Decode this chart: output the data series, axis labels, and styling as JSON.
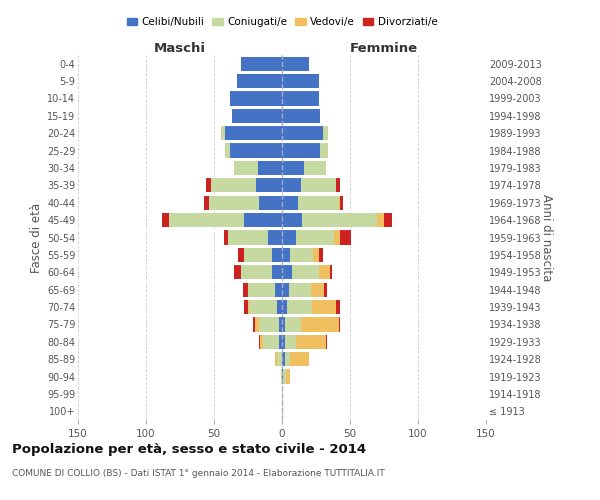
{
  "age_groups": [
    "100+",
    "95-99",
    "90-94",
    "85-89",
    "80-84",
    "75-79",
    "70-74",
    "65-69",
    "60-64",
    "55-59",
    "50-54",
    "45-49",
    "40-44",
    "35-39",
    "30-34",
    "25-29",
    "20-24",
    "15-19",
    "10-14",
    "5-9",
    "0-4"
  ],
  "birth_years": [
    "≤ 1913",
    "1914-1918",
    "1919-1923",
    "1924-1928",
    "1929-1933",
    "1934-1938",
    "1939-1943",
    "1944-1948",
    "1949-1953",
    "1954-1958",
    "1959-1963",
    "1964-1968",
    "1969-1973",
    "1974-1978",
    "1979-1983",
    "1984-1988",
    "1989-1993",
    "1994-1998",
    "1999-2003",
    "2004-2008",
    "2009-2013"
  ],
  "males": {
    "celibi": [
      0,
      0,
      0,
      0,
      2,
      2,
      4,
      5,
      7,
      7,
      10,
      28,
      17,
      19,
      18,
      38,
      42,
      37,
      38,
      33,
      30
    ],
    "coniugati": [
      0,
      0,
      1,
      4,
      12,
      15,
      20,
      20,
      23,
      21,
      30,
      55,
      37,
      33,
      17,
      4,
      3,
      0,
      0,
      0,
      0
    ],
    "vedovi": [
      0,
      0,
      0,
      1,
      2,
      3,
      1,
      0,
      0,
      0,
      0,
      0,
      0,
      0,
      0,
      0,
      0,
      0,
      0,
      0,
      0
    ],
    "divorziati": [
      0,
      0,
      0,
      0,
      1,
      1,
      3,
      4,
      5,
      4,
      3,
      5,
      3,
      4,
      0,
      0,
      0,
      0,
      0,
      0,
      0
    ]
  },
  "females": {
    "nubili": [
      0,
      0,
      1,
      2,
      2,
      2,
      4,
      5,
      7,
      6,
      10,
      15,
      12,
      14,
      16,
      28,
      30,
      28,
      27,
      27,
      20
    ],
    "coniugate": [
      0,
      0,
      2,
      4,
      8,
      12,
      18,
      16,
      20,
      17,
      28,
      55,
      30,
      26,
      16,
      6,
      4,
      0,
      0,
      0,
      0
    ],
    "vedove": [
      1,
      1,
      3,
      14,
      22,
      28,
      18,
      10,
      8,
      4,
      5,
      5,
      1,
      0,
      0,
      0,
      0,
      0,
      0,
      0,
      0
    ],
    "divorziate": [
      0,
      0,
      0,
      0,
      1,
      1,
      3,
      2,
      2,
      3,
      8,
      6,
      2,
      3,
      0,
      0,
      0,
      0,
      0,
      0,
      0
    ]
  },
  "colors": {
    "celibi": "#4472c4",
    "coniugati": "#c5d9a0",
    "vedovi": "#f0c060",
    "divorziati": "#cc2222"
  },
  "title": "Popolazione per età, sesso e stato civile - 2014",
  "subtitle": "COMUNE DI COLLIO (BS) - Dati ISTAT 1° gennaio 2014 - Elaborazione TUTTITALIA.IT",
  "ylabel_left": "Fasce di età",
  "ylabel_right": "Anni di nascita",
  "xlabel_maschi": "Maschi",
  "xlabel_femmine": "Femmine",
  "xlim": 150,
  "background_color": "#ffffff",
  "grid_color": "#cccccc",
  "legend_labels": [
    "Celibi/Nubili",
    "Coniugati/e",
    "Vedovi/e",
    "Divorziati/e"
  ]
}
